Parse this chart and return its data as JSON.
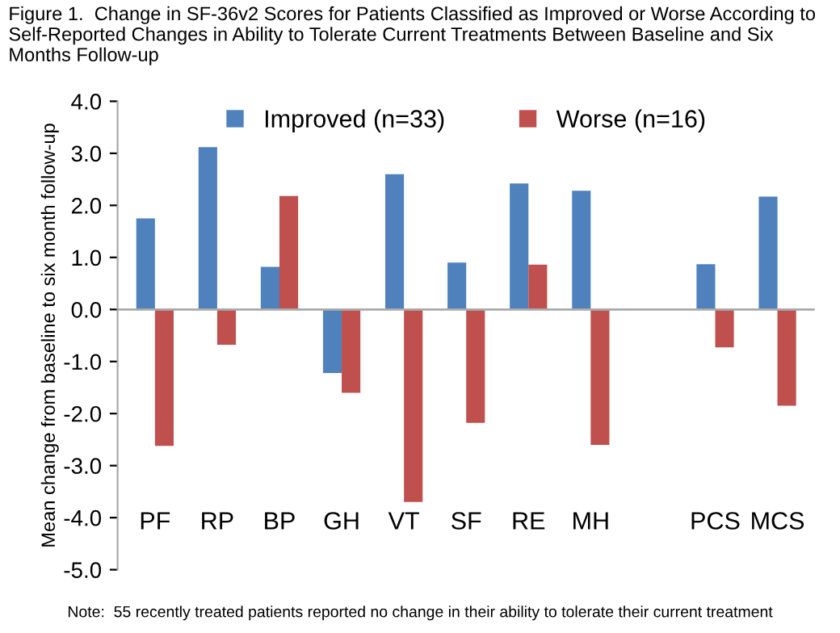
{
  "chart_data": {
    "type": "bar",
    "title": "Figure 1.  Change in SF-36v2 Scores for Patients Classified as Improved or Worse According to Self-Reported Changes in Ability to Tolerate Current Treatments Between Baseline and Six Months Follow-up",
    "ylabel": "Mean change from baseline to six month follow-up",
    "categories": [
      "PF",
      "RP",
      "BP",
      "GH",
      "VT",
      "SF",
      "RE",
      "MH",
      null,
      "PCS",
      "MCS"
    ],
    "series": [
      {
        "name": "Improved (n=33)",
        "color": "#4f81bd",
        "values": [
          1.75,
          3.12,
          0.82,
          -1.22,
          2.6,
          0.9,
          2.42,
          2.28,
          null,
          0.87,
          2.17
        ]
      },
      {
        "name": "Worse (n=16)",
        "color": "#c0504d",
        "values": [
          -2.62,
          -0.68,
          2.18,
          -1.6,
          -3.7,
          -2.18,
          0.86,
          -2.6,
          null,
          -0.73,
          -1.85
        ]
      }
    ],
    "ylim": [
      -5.0,
      4.0
    ],
    "yticks": [
      {
        "value": -5,
        "label": "-5.0"
      },
      {
        "value": -4,
        "label": "-4.0"
      },
      {
        "value": -3,
        "label": "-3.0"
      },
      {
        "value": -2,
        "label": "-2.0"
      },
      {
        "value": -1,
        "label": "-1.0"
      },
      {
        "value": 0,
        "label": "0.0"
      },
      {
        "value": 1,
        "label": "1.0"
      },
      {
        "value": 2,
        "label": "2.0"
      },
      {
        "value": 3,
        "label": "3.0"
      },
      {
        "value": 4,
        "label": "4.0"
      }
    ],
    "legend": "top",
    "annotations": [
      "Note:  55 recently treated patients reported no change in their ability to tolerate their current treatment"
    ]
  }
}
